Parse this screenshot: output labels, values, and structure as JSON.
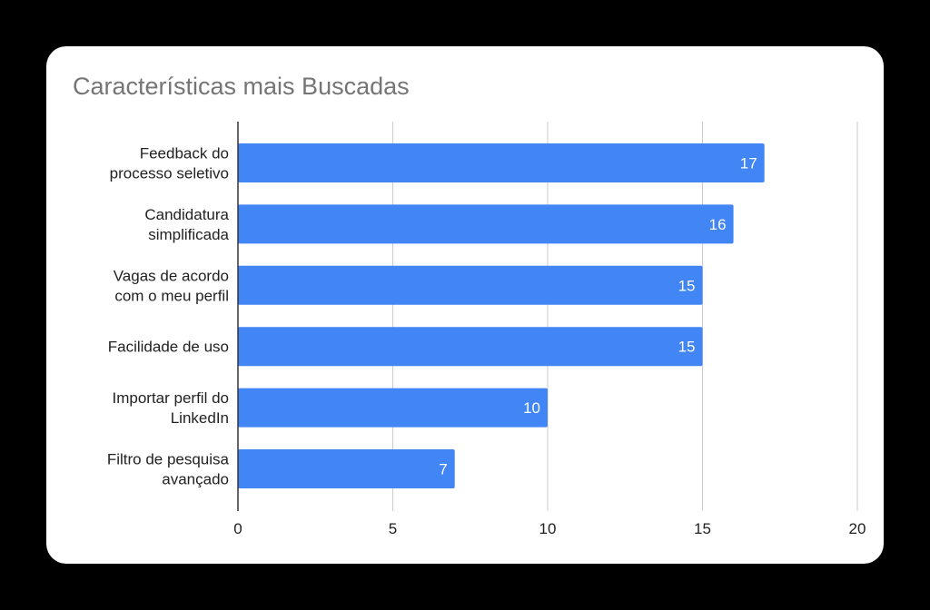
{
  "chart_data": {
    "type": "bar",
    "orientation": "horizontal",
    "title": "Características mais Buscadas",
    "xlabel": "",
    "ylabel": "",
    "categories": [
      [
        "Feedback do",
        "processo seletivo"
      ],
      [
        "Candidatura",
        "simplificada"
      ],
      [
        "Vagas de acordo",
        "com o meu perfil"
      ],
      [
        "Facilidade de uso"
      ],
      [
        "Importar perfil do",
        "LinkedIn"
      ],
      [
        "Filtro de pesquisa",
        "avançado"
      ]
    ],
    "values": [
      17,
      16,
      15,
      15,
      10,
      7
    ],
    "xlim": [
      0,
      20
    ],
    "xticks": [
      0,
      5,
      10,
      15,
      20
    ],
    "grid": true,
    "data_labels": true,
    "colors": {
      "bar": "#4285f4",
      "grid": "#cccccc",
      "axis": "#333333",
      "background": "#000000",
      "card": "#ffffff",
      "title": "#757575"
    }
  }
}
